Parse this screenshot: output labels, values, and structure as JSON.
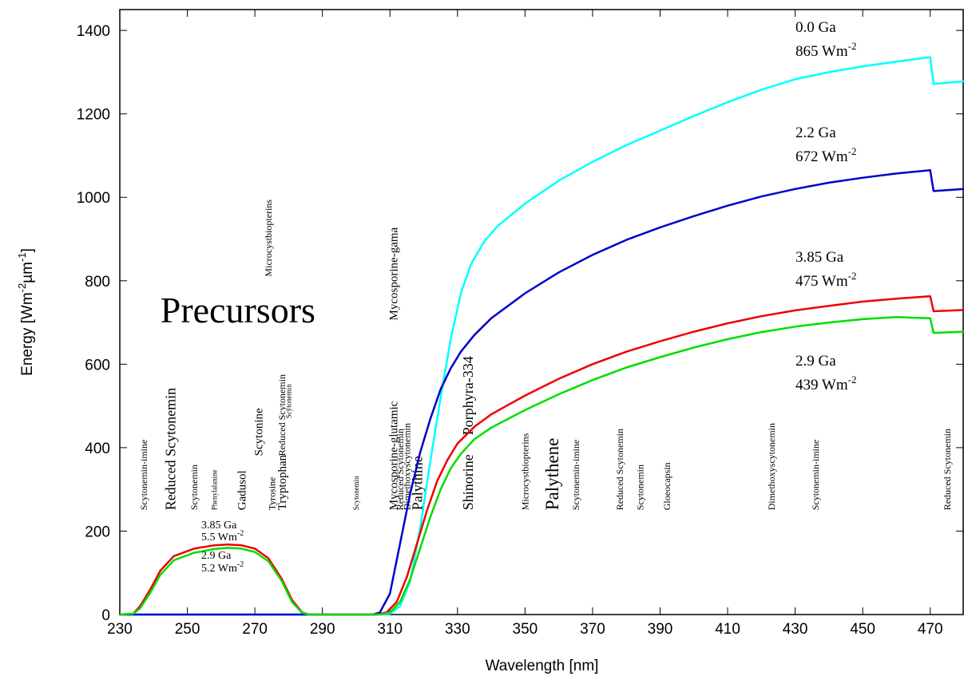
{
  "chart_data": {
    "type": "line",
    "title": "",
    "xlabel": "Wavelength [nm]",
    "ylabel_parts": [
      "Energy [Wm",
      "-2",
      "µm",
      "-1",
      "]"
    ],
    "xlim": [
      230,
      480
    ],
    "ylim": [
      0,
      1450
    ],
    "x_ticks": [
      230,
      250,
      270,
      290,
      310,
      330,
      350,
      370,
      390,
      410,
      430,
      450,
      470
    ],
    "y_ticks": [
      0,
      200,
      400,
      600,
      800,
      1000,
      1200,
      1400
    ],
    "grid": false,
    "series": [
      {
        "color": "#00ffff",
        "points": [
          [
            230,
            0
          ],
          [
            305,
            0
          ],
          [
            310,
            2
          ],
          [
            313,
            20
          ],
          [
            316,
            80
          ],
          [
            319,
            210
          ],
          [
            322,
            370
          ],
          [
            325,
            520
          ],
          [
            328,
            660
          ],
          [
            331,
            770
          ],
          [
            334,
            840
          ],
          [
            338,
            895
          ],
          [
            342,
            932
          ],
          [
            350,
            985
          ],
          [
            360,
            1040
          ],
          [
            370,
            1085
          ],
          [
            380,
            1125
          ],
          [
            390,
            1160
          ],
          [
            400,
            1195
          ],
          [
            410,
            1228
          ],
          [
            420,
            1258
          ],
          [
            430,
            1283
          ],
          [
            440,
            1300
          ],
          [
            450,
            1314
          ],
          [
            460,
            1325
          ],
          [
            470,
            1336
          ],
          [
            471,
            1272
          ],
          [
            480,
            1278
          ]
        ],
        "labels": [
          {
            "line": "0.0 Ga"
          },
          {
            "line": "865 Wm",
            "sup": "-2"
          }
        ]
      },
      {
        "color": "#0000cc",
        "points": [
          [
            230,
            0
          ],
          [
            305,
            0
          ],
          [
            307,
            5
          ],
          [
            310,
            50
          ],
          [
            313,
            170
          ],
          [
            316,
            290
          ],
          [
            319,
            390
          ],
          [
            322,
            470
          ],
          [
            325,
            540
          ],
          [
            328,
            590
          ],
          [
            331,
            630
          ],
          [
            335,
            670
          ],
          [
            340,
            710
          ],
          [
            350,
            770
          ],
          [
            360,
            820
          ],
          [
            370,
            862
          ],
          [
            380,
            898
          ],
          [
            390,
            928
          ],
          [
            400,
            955
          ],
          [
            410,
            980
          ],
          [
            420,
            1002
          ],
          [
            430,
            1020
          ],
          [
            440,
            1035
          ],
          [
            450,
            1047
          ],
          [
            460,
            1057
          ],
          [
            470,
            1065
          ],
          [
            471,
            1015
          ],
          [
            480,
            1020
          ]
        ],
        "labels": [
          {
            "line": "2.2 Ga"
          },
          {
            "line": "672 Wm",
            "sup": "-2"
          }
        ]
      },
      {
        "color": "#ee0000",
        "points": [
          [
            230,
            0
          ],
          [
            234,
            2
          ],
          [
            236,
            20
          ],
          [
            239,
            60
          ],
          [
            242,
            105
          ],
          [
            246,
            140
          ],
          [
            252,
            158
          ],
          [
            258,
            166
          ],
          [
            262,
            168
          ],
          [
            266,
            166
          ],
          [
            270,
            158
          ],
          [
            274,
            135
          ],
          [
            278,
            85
          ],
          [
            281,
            35
          ],
          [
            284,
            5
          ],
          [
            286,
            0
          ],
          [
            306,
            0
          ],
          [
            309,
            5
          ],
          [
            312,
            30
          ],
          [
            315,
            90
          ],
          [
            318,
            170
          ],
          [
            321,
            250
          ],
          [
            324,
            320
          ],
          [
            327,
            370
          ],
          [
            330,
            410
          ],
          [
            335,
            450
          ],
          [
            340,
            480
          ],
          [
            350,
            525
          ],
          [
            360,
            565
          ],
          [
            370,
            600
          ],
          [
            380,
            630
          ],
          [
            390,
            655
          ],
          [
            400,
            678
          ],
          [
            410,
            698
          ],
          [
            420,
            715
          ],
          [
            430,
            729
          ],
          [
            440,
            740
          ],
          [
            450,
            750
          ],
          [
            460,
            757
          ],
          [
            470,
            763
          ],
          [
            471,
            727
          ],
          [
            480,
            730
          ]
        ],
        "labels": [
          {
            "line": "3.85 Ga"
          },
          {
            "line": "475 Wm",
            "sup": "-2"
          }
        ]
      },
      {
        "color": "#00dd00",
        "points": [
          [
            230,
            0
          ],
          [
            234,
            2
          ],
          [
            236,
            15
          ],
          [
            239,
            52
          ],
          [
            242,
            95
          ],
          [
            246,
            130
          ],
          [
            252,
            148
          ],
          [
            258,
            157
          ],
          [
            262,
            160
          ],
          [
            266,
            158
          ],
          [
            270,
            150
          ],
          [
            274,
            128
          ],
          [
            278,
            80
          ],
          [
            281,
            30
          ],
          [
            284,
            4
          ],
          [
            286,
            0
          ],
          [
            307,
            0
          ],
          [
            310,
            5
          ],
          [
            313,
            30
          ],
          [
            316,
            85
          ],
          [
            319,
            160
          ],
          [
            322,
            235
          ],
          [
            325,
            300
          ],
          [
            328,
            350
          ],
          [
            331,
            385
          ],
          [
            335,
            420
          ],
          [
            340,
            448
          ],
          [
            350,
            490
          ],
          [
            360,
            528
          ],
          [
            370,
            562
          ],
          [
            380,
            592
          ],
          [
            390,
            617
          ],
          [
            400,
            640
          ],
          [
            410,
            660
          ],
          [
            420,
            677
          ],
          [
            430,
            690
          ],
          [
            440,
            700
          ],
          [
            450,
            708
          ],
          [
            460,
            713
          ],
          [
            470,
            710
          ],
          [
            471,
            675
          ],
          [
            480,
            678
          ]
        ],
        "labels": [
          {
            "line": "2.9 Ga"
          },
          {
            "line": "439 Wm",
            "sup": "-2"
          }
        ]
      }
    ],
    "uv_labels": [
      {
        "line1": "3.85 Ga",
        "line2": "5.5 Wm",
        "sup": "-2"
      },
      {
        "line1": "2.9 Ga",
        "line2": "5.2 Wm",
        "sup": "-2"
      }
    ],
    "annotations": [
      {
        "text": "Precursors",
        "x": 242,
        "y": 700,
        "size": "xl",
        "vertical": false
      },
      {
        "text": "Scytonemin-imine",
        "x": 237,
        "y": 250,
        "size": "s",
        "vertical": true
      },
      {
        "text": "Reduced Scytonemin",
        "x": 245,
        "y": 250,
        "size": "l",
        "vertical": true
      },
      {
        "text": "Scytonemin",
        "x": 252,
        "y": 250,
        "size": "s",
        "vertical": true
      },
      {
        "text": "Phenylalanine",
        "x": 258,
        "y": 250,
        "size": "xs",
        "vertical": true
      },
      {
        "text": "Gadusol",
        "x": 266,
        "y": 250,
        "size": "m",
        "vertical": true
      },
      {
        "text": "Scytonine",
        "x": 271,
        "y": 380,
        "size": "m",
        "vertical": true
      },
      {
        "text": "Tyrosine",
        "x": 275,
        "y": 250,
        "size": "s",
        "vertical": true
      },
      {
        "text": "Tryptophan",
        "x": 278,
        "y": 250,
        "size": "m",
        "vertical": true
      },
      {
        "text": "Reduced Scytonemin",
        "x": 278,
        "y": 380,
        "size": "s",
        "vertical": true
      },
      {
        "text": "Scytonemin",
        "x": 280,
        "y": 470,
        "size": "xs",
        "vertical": true
      },
      {
        "text": "Microcystbiopterins",
        "x": 274,
        "y": 810,
        "size": "s",
        "vertical": true
      },
      {
        "text": "Scytonemin",
        "x": 300,
        "y": 250,
        "size": "xs",
        "vertical": true
      },
      {
        "text": "Mycosporine-gama",
        "x": 311,
        "y": 705,
        "size": "m",
        "vertical": true
      },
      {
        "text": "Mycosporine-glutamic",
        "x": 311,
        "y": 250,
        "size": "m",
        "vertical": true
      },
      {
        "text": "Reduced Scytonemin",
        "x": 313,
        "y": 250,
        "size": "s",
        "vertical": true
      },
      {
        "text": "Dimethoxyscytonemin",
        "x": 315,
        "y": 250,
        "size": "s",
        "vertical": true
      },
      {
        "text": "Palythine",
        "x": 318,
        "y": 250,
        "size": "l",
        "vertical": true
      },
      {
        "text": "Shinorine",
        "x": 333,
        "y": 250,
        "size": "l",
        "vertical": true
      },
      {
        "text": "Porphyra-334",
        "x": 333,
        "y": 430,
        "size": "l",
        "vertical": true
      },
      {
        "text": "Microcystbiopterins",
        "x": 350,
        "y": 250,
        "size": "s",
        "vertical": true
      },
      {
        "text": "Palythene",
        "x": 358,
        "y": 250,
        "size": "xl2",
        "vertical": true
      },
      {
        "text": "Scytonemin-imine",
        "x": 365,
        "y": 250,
        "size": "s",
        "vertical": true
      },
      {
        "text": "Reduced Scytonemin",
        "x": 378,
        "y": 250,
        "size": "s",
        "vertical": true
      },
      {
        "text": "Scytonemin",
        "x": 384,
        "y": 250,
        "size": "s",
        "vertical": true
      },
      {
        "text": "Gloeocapsin",
        "x": 392,
        "y": 250,
        "size": "s",
        "vertical": true
      },
      {
        "text": "Dimethoxyscytonemin",
        "x": 423,
        "y": 250,
        "size": "s",
        "vertical": true
      },
      {
        "text": "Scytonemin-imine",
        "x": 436,
        "y": 250,
        "size": "s",
        "vertical": true
      },
      {
        "text": "Reduced Scytonemin",
        "x": 475,
        "y": 250,
        "size": "s",
        "vertical": true
      }
    ]
  }
}
